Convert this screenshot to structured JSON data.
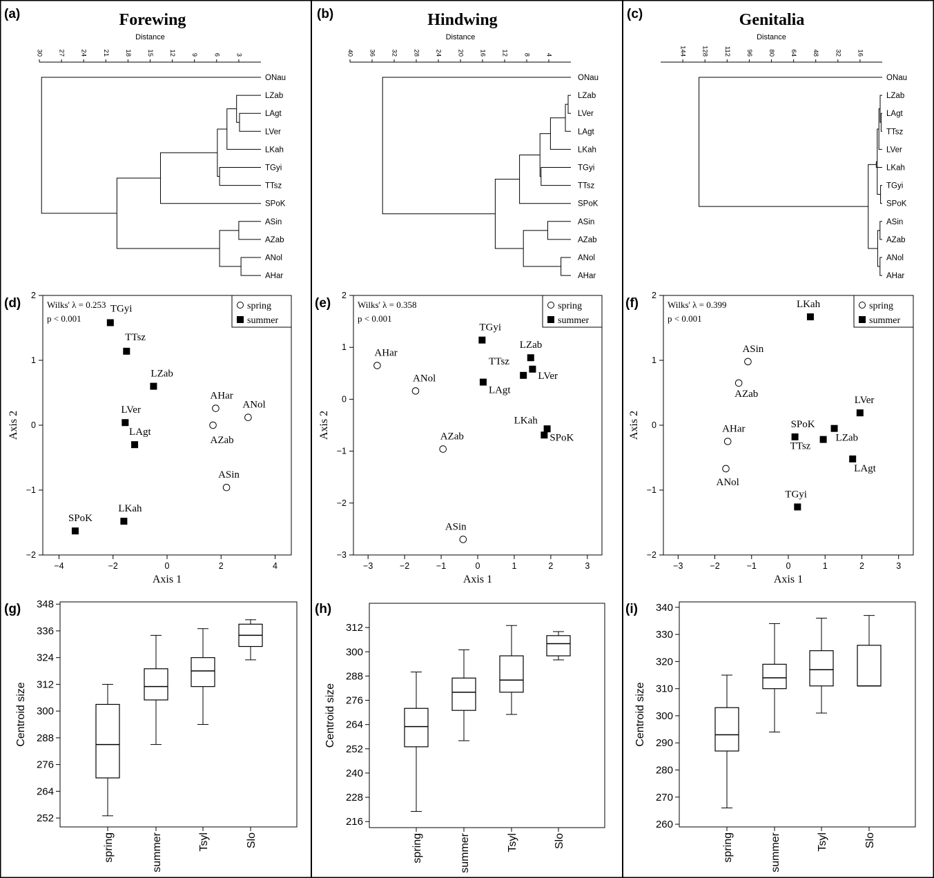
{
  "columns": [
    {
      "title": "Forewing"
    },
    {
      "title": "Hindwing"
    },
    {
      "title": "Genitalia"
    }
  ],
  "panel_labels": [
    "(a)",
    "(b)",
    "(c)",
    "(d)",
    "(e)",
    "(f)",
    "(g)",
    "(h)",
    "(i)"
  ],
  "chart_data": [
    {
      "type": "dendrogram",
      "panel": "(a)",
      "xlabel": "Distance",
      "x_ticks": [
        30,
        27,
        24,
        21,
        18,
        15,
        12,
        9,
        6,
        3
      ],
      "xlim": [
        30,
        0
      ],
      "leaves": [
        "ONau",
        "LZab",
        "LAgt",
        "LVer",
        "LKah",
        "TGyi",
        "TTsz",
        "SPoK",
        "ASin",
        "AZab",
        "ANol",
        "AHar"
      ],
      "merges": [
        {
          "a": "LAgt",
          "b": "LVer",
          "height": 2.9
        },
        {
          "a": "LZab",
          "b": "LAgt+LVer",
          "height": 3.3
        },
        {
          "a": "LZab+LAgt+LVer",
          "b": "LKah",
          "height": 4.6
        },
        {
          "a": "TGyi",
          "b": "TTsz",
          "height": 5.6
        },
        {
          "a": "L-group",
          "b": "T-group",
          "height": 5.9
        },
        {
          "a": "L+T",
          "b": "SPoK",
          "height": 13.6
        },
        {
          "a": "ASin",
          "b": "AZab",
          "height": 3.0
        },
        {
          "a": "ANol",
          "b": "AHar",
          "height": 2.7
        },
        {
          "a": "ASin+AZab",
          "b": "ANol+AHar",
          "height": 5.6
        },
        {
          "a": "L+T+SPoK",
          "b": "A-group",
          "height": 19.5
        },
        {
          "a": "ONau",
          "b": "rest",
          "height": 29.7
        }
      ]
    },
    {
      "type": "dendrogram",
      "panel": "(b)",
      "xlabel": "Distance",
      "x_ticks": [
        40,
        36,
        32,
        28,
        24,
        20,
        16,
        12,
        8,
        4
      ],
      "xlim": [
        40,
        0
      ],
      "leaves": [
        "ONau",
        "LZab",
        "LVer",
        "LAgt",
        "LKah",
        "TGyi",
        "TTsz",
        "SPoK",
        "ASin",
        "AZab",
        "ANol",
        "AHar"
      ],
      "merges": [
        {
          "a": "LZab",
          "b": "LVer",
          "height": 0.5
        },
        {
          "a": "LZab+LVer",
          "b": "LAgt",
          "height": 1.0
        },
        {
          "a": "LZab+LVer+LAgt",
          "b": "LKah",
          "height": 3.7
        },
        {
          "a": "TGyi",
          "b": "TTsz",
          "height": 5.4
        },
        {
          "a": "L-group",
          "b": "T-group",
          "height": 5.6
        },
        {
          "a": "L+T",
          "b": "SPoK",
          "height": 9.3
        },
        {
          "a": "ASin",
          "b": "AZab",
          "height": 4.2
        },
        {
          "a": "ANol",
          "b": "AHar",
          "height": 1.8
        },
        {
          "a": "ASin+AZab",
          "b": "ANol+AHar",
          "height": 8.6
        },
        {
          "a": "L+T+SPoK",
          "b": "A-group",
          "height": 13.7
        },
        {
          "a": "ONau",
          "b": "rest",
          "height": 34.1
        }
      ]
    },
    {
      "type": "dendrogram",
      "panel": "(c)",
      "xlabel": "Distance",
      "x_ticks": [
        144,
        128,
        112,
        96,
        80,
        64,
        48,
        32,
        16
      ],
      "xlim": [
        160,
        0
      ],
      "leaves": [
        "ONau",
        "LZab",
        "LAgt",
        "TTsz",
        "LVer",
        "LKah",
        "TGyi",
        "SPoK",
        "ASin",
        "AZab",
        "ANol",
        "AHar"
      ],
      "merges": [
        {
          "a": "LAgt",
          "b": "TTsz",
          "height": 0.8
        },
        {
          "a": "LZab",
          "b": "LAgt+TTsz",
          "height": 1.5
        },
        {
          "a": "LZab+LAgt+TTsz",
          "b": "LVer",
          "height": 2.4
        },
        {
          "a": "TGyi",
          "b": "SPoK",
          "height": 1.2
        },
        {
          "a": "L-group",
          "b": "TGyi+SPoK",
          "height": 3.6
        },
        {
          "a": "L+T+S",
          "b": "LKah",
          "height": 4.3
        },
        {
          "a": "ASin",
          "b": "AZab",
          "height": 1.6
        },
        {
          "a": "ANol",
          "b": "AHar",
          "height": 1.6
        },
        {
          "a": "ASin+AZab",
          "b": "ANol+AHar",
          "height": 3.3
        },
        {
          "a": "A-group",
          "b": "others",
          "height": 10.1
        },
        {
          "a": "ONau",
          "b": "rest",
          "height": 132.3
        }
      ]
    },
    {
      "type": "scatter",
      "panel": "(d)",
      "xlabel": "Axis 1",
      "ylabel": "Axis 2",
      "xlim": [
        -4.6,
        4.6
      ],
      "ylim": [
        -2.0,
        2.0
      ],
      "x_ticks": [
        -4,
        -2,
        0,
        2,
        4
      ],
      "y_ticks": [
        -2,
        -1,
        0,
        1,
        2
      ],
      "annotation": [
        "Wilks' λ = 0.253",
        "p < 0.001"
      ],
      "legend": {
        "position": "top-right",
        "entries": [
          "spring",
          "summer"
        ]
      },
      "points": [
        {
          "label": "TGyi",
          "series": "summer",
          "x": -2.1,
          "y": 1.58
        },
        {
          "label": "TTsz",
          "series": "summer",
          "x": -1.5,
          "y": 1.14
        },
        {
          "label": "LZab",
          "series": "summer",
          "x": -0.5,
          "y": 0.6
        },
        {
          "label": "LVer",
          "series": "summer",
          "x": -1.55,
          "y": 0.04
        },
        {
          "label": "LAgt",
          "series": "summer",
          "x": -1.2,
          "y": -0.3
        },
        {
          "label": "SPoK",
          "series": "summer",
          "x": -3.4,
          "y": -1.63
        },
        {
          "label": "LKah",
          "series": "summer",
          "x": -1.6,
          "y": -1.48
        },
        {
          "label": "AHar",
          "series": "spring",
          "x": 1.8,
          "y": 0.26
        },
        {
          "label": "AZab",
          "series": "spring",
          "x": 1.7,
          "y": 0.0
        },
        {
          "label": "ANol",
          "series": "spring",
          "x": 3.0,
          "y": 0.12
        },
        {
          "label": "ASin",
          "series": "spring",
          "x": 2.2,
          "y": -0.96
        }
      ]
    },
    {
      "type": "scatter",
      "panel": "(e)",
      "xlabel": "Axis 1",
      "ylabel": "Axis 2",
      "xlim": [
        -3.4,
        3.4
      ],
      "ylim": [
        -3.0,
        2.0
      ],
      "x_ticks": [
        -3,
        -2,
        -1,
        0,
        1,
        2,
        3
      ],
      "y_ticks": [
        -3,
        -2,
        -1,
        0,
        1,
        2
      ],
      "annotation": [
        "Wilks' λ = 0.358",
        "p < 0.001"
      ],
      "legend": {
        "position": "top-right",
        "entries": [
          "spring",
          "summer"
        ]
      },
      "points": [
        {
          "label": "TGyi",
          "series": "summer",
          "x": 0.12,
          "y": 1.14
        },
        {
          "label": "LZab",
          "series": "summer",
          "x": 1.45,
          "y": 0.8
        },
        {
          "label": "TTsz",
          "series": "summer",
          "x": 1.25,
          "y": 0.46
        },
        {
          "label": "LVer",
          "series": "summer",
          "x": 1.5,
          "y": 0.58
        },
        {
          "label": "LAgt",
          "series": "summer",
          "x": 0.15,
          "y": 0.33
        },
        {
          "label": "LKah",
          "series": "summer",
          "x": 1.9,
          "y": -0.57
        },
        {
          "label": "SPoK",
          "series": "summer",
          "x": 1.82,
          "y": -0.69
        },
        {
          "label": "AHar",
          "series": "spring",
          "x": -2.75,
          "y": 0.65
        },
        {
          "label": "ANol",
          "series": "spring",
          "x": -1.7,
          "y": 0.16
        },
        {
          "label": "AZab",
          "series": "spring",
          "x": -0.95,
          "y": -0.96
        },
        {
          "label": "ASin",
          "series": "spring",
          "x": -0.4,
          "y": -2.7
        }
      ]
    },
    {
      "type": "scatter",
      "panel": "(f)",
      "xlabel": "Axis 1",
      "ylabel": "Axis 2",
      "xlim": [
        -3.4,
        3.4
      ],
      "ylim": [
        -2.0,
        2.0
      ],
      "x_ticks": [
        -3,
        -2,
        -1,
        0,
        1,
        2,
        3
      ],
      "y_ticks": [
        -2,
        -1,
        0,
        1,
        2
      ],
      "annotation": [
        "Wilks' λ = 0.399",
        "p < 0.001"
      ],
      "legend": {
        "position": "top-right",
        "entries": [
          "spring",
          "summer"
        ]
      },
      "points": [
        {
          "label": "LKah",
          "series": "summer",
          "x": 0.6,
          "y": 1.67
        },
        {
          "label": "LVer",
          "series": "summer",
          "x": 1.95,
          "y": 0.19
        },
        {
          "label": "SPoK",
          "series": "summer",
          "x": 0.18,
          "y": -0.18
        },
        {
          "label": "LZab",
          "series": "summer",
          "x": 1.25,
          "y": -0.05
        },
        {
          "label": "TTsz",
          "series": "summer",
          "x": 0.95,
          "y": -0.22
        },
        {
          "label": "LAgt",
          "series": "summer",
          "x": 1.75,
          "y": -0.52
        },
        {
          "label": "TGyi",
          "series": "summer",
          "x": 0.25,
          "y": -1.26
        },
        {
          "label": "ASin",
          "series": "spring",
          "x": -1.1,
          "y": 0.98
        },
        {
          "label": "AZab",
          "series": "spring",
          "x": -1.35,
          "y": 0.65
        },
        {
          "label": "AHar",
          "series": "spring",
          "x": -1.65,
          "y": -0.25
        },
        {
          "label": "ANol",
          "series": "spring",
          "x": -1.7,
          "y": -0.67
        }
      ]
    },
    {
      "type": "boxplot",
      "panel": "(g)",
      "ylabel": "Centroid size",
      "ylim": [
        248,
        349
      ],
      "y_ticks": [
        252,
        264,
        276,
        288,
        300,
        312,
        324,
        336,
        348
      ],
      "categories": [
        "spring",
        "summer",
        "Tsyl",
        "Slo"
      ],
      "boxes": [
        {
          "category": "spring",
          "min": 253,
          "q1": 270,
          "median": 285,
          "q3": 303,
          "max": 312
        },
        {
          "category": "summer",
          "min": 285,
          "q1": 305,
          "median": 311,
          "q3": 319,
          "max": 334
        },
        {
          "category": "Tsyl",
          "min": 294,
          "q1": 311,
          "median": 318,
          "q3": 324,
          "max": 337
        },
        {
          "category": "Slo",
          "min": 323,
          "q1": 329,
          "median": 334,
          "q3": 339,
          "max": 341
        }
      ]
    },
    {
      "type": "boxplot",
      "panel": "(h)",
      "ylabel": "Centroid size",
      "ylim": [
        213,
        324
      ],
      "y_ticks": [
        216,
        228,
        240,
        252,
        264,
        276,
        288,
        300,
        312
      ],
      "categories": [
        "spring",
        "summer",
        "Tsyl",
        "Slo"
      ],
      "boxes": [
        {
          "category": "spring",
          "min": 221,
          "q1": 253,
          "median": 263,
          "q3": 272,
          "max": 290
        },
        {
          "category": "summer",
          "min": 256,
          "q1": 271,
          "median": 280,
          "q3": 287,
          "max": 301
        },
        {
          "category": "Tsyl",
          "min": 269,
          "q1": 280,
          "median": 286,
          "q3": 298,
          "max": 313
        },
        {
          "category": "Slo",
          "min": 296,
          "q1": 298,
          "median": 304,
          "q3": 308,
          "max": 310
        }
      ]
    },
    {
      "type": "boxplot",
      "panel": "(i)",
      "ylabel": "Centroid size",
      "ylim": [
        259,
        342
      ],
      "y_ticks": [
        260,
        270,
        280,
        290,
        300,
        310,
        320,
        330,
        340
      ],
      "categories": [
        "spring",
        "summer",
        "Tsyl",
        "Slo"
      ],
      "boxes": [
        {
          "category": "spring",
          "min": 266,
          "q1": 287,
          "median": 293,
          "q3": 303,
          "max": 315
        },
        {
          "category": "summer",
          "min": 294,
          "q1": 310,
          "median": 314,
          "q3": 319,
          "max": 334
        },
        {
          "category": "Tsyl",
          "min": 301,
          "q1": 311,
          "median": 317,
          "q3": 324,
          "max": 336
        },
        {
          "category": "Slo",
          "min": 311,
          "q1": 311,
          "median": 311,
          "q3": 326,
          "max": 337
        }
      ]
    }
  ]
}
